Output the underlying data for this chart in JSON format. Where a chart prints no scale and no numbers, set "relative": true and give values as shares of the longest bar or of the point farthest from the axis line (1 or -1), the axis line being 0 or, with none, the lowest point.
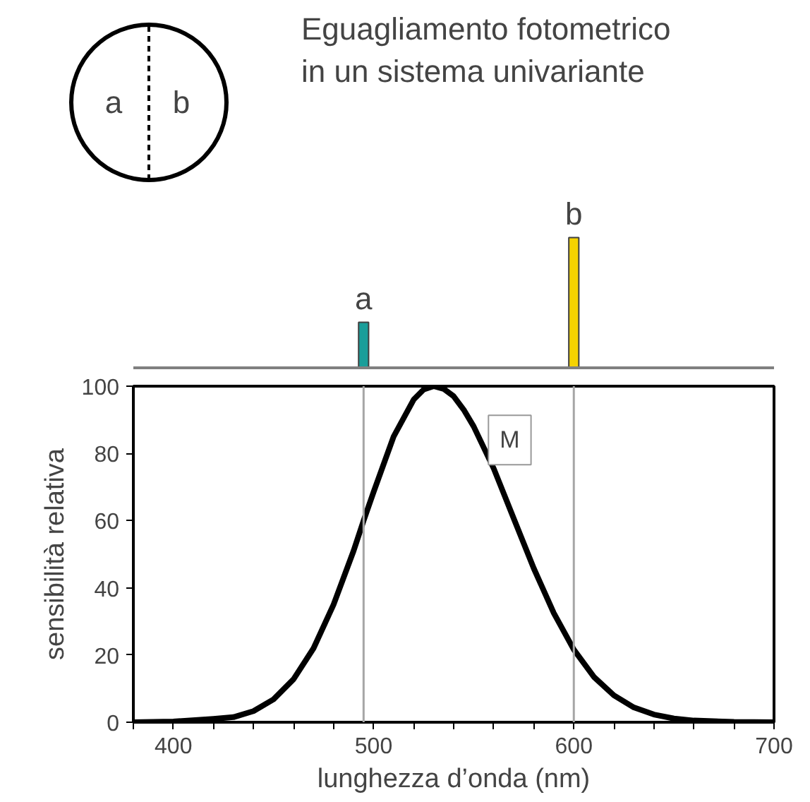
{
  "chart_data": [
    {
      "type": "bar",
      "title": "Eguagliamento fotometrico\nin un sistema univariante",
      "annotations": [
        "a",
        "b",
        {
          "text": "a",
          "x": 495,
          "y": 0.35
        },
        {
          "text": "b",
          "x": 600,
          "y": 1
        }
      ],
      "x": [
        495,
        600
      ],
      "values": [
        0.35,
        1
      ],
      "colors": [
        "#1a9e9a",
        "#f5d300"
      ],
      "relative": true,
      "xlim": [
        380,
        700
      ],
      "tick_labels": false
    },
    {
      "type": "line",
      "xlabel": "lunghezza d’onda (nm)",
      "ylabel": "sensibilità relativa",
      "xlim": [
        380,
        700
      ],
      "ylim": [
        0,
        100
      ],
      "xticks": [
        {
          "value": 380,
          "label": null
        },
        400,
        {
          "value": 420,
          "label": null
        },
        {
          "value": 440,
          "label": null
        },
        {
          "value": 460,
          "label": null
        },
        {
          "value": 480,
          "label": null
        },
        500,
        {
          "value": 520,
          "label": null
        },
        {
          "value": 540,
          "label": null
        },
        {
          "value": 560,
          "label": null
        },
        {
          "value": 580,
          "label": null
        },
        600,
        {
          "value": 620,
          "label": null
        },
        {
          "value": 640,
          "label": null
        },
        {
          "value": 660,
          "label": null
        },
        {
          "value": 680,
          "label": null
        },
        700
      ],
      "yticks": [
        0,
        20,
        40,
        60,
        80,
        100
      ],
      "annotations": [
        {
          "text": "M",
          "x": 568,
          "y": 84
        }
      ],
      "series": [
        {
          "color": "#000000",
          "x": [
            380,
            400,
            420,
            430,
            440,
            450,
            460,
            470,
            480,
            490,
            495,
            500,
            510,
            520,
            525,
            530,
            535,
            540,
            545,
            550,
            560,
            570,
            580,
            590,
            600,
            610,
            620,
            630,
            640,
            650,
            660,
            680,
            700
          ],
          "values": [
            0,
            0.2,
            1,
            1.5,
            3.3,
            6.8,
            12.8,
            22,
            35,
            51,
            60,
            68.5,
            85,
            96,
            99,
            100,
            99.2,
            97,
            93,
            88,
            75.5,
            60.6,
            45.8,
            32.5,
            21.6,
            13.5,
            8,
            4.4,
            2.3,
            1.1,
            0.5,
            0.1,
            0
          ]
        }
      ],
      "ref_lines": [
        {
          "axis": "x",
          "value": 495,
          "label": null,
          "color": "#a6a6a6"
        },
        {
          "axis": "x",
          "value": 600,
          "label": null,
          "color": "#a6a6a6"
        }
      ]
    }
  ]
}
